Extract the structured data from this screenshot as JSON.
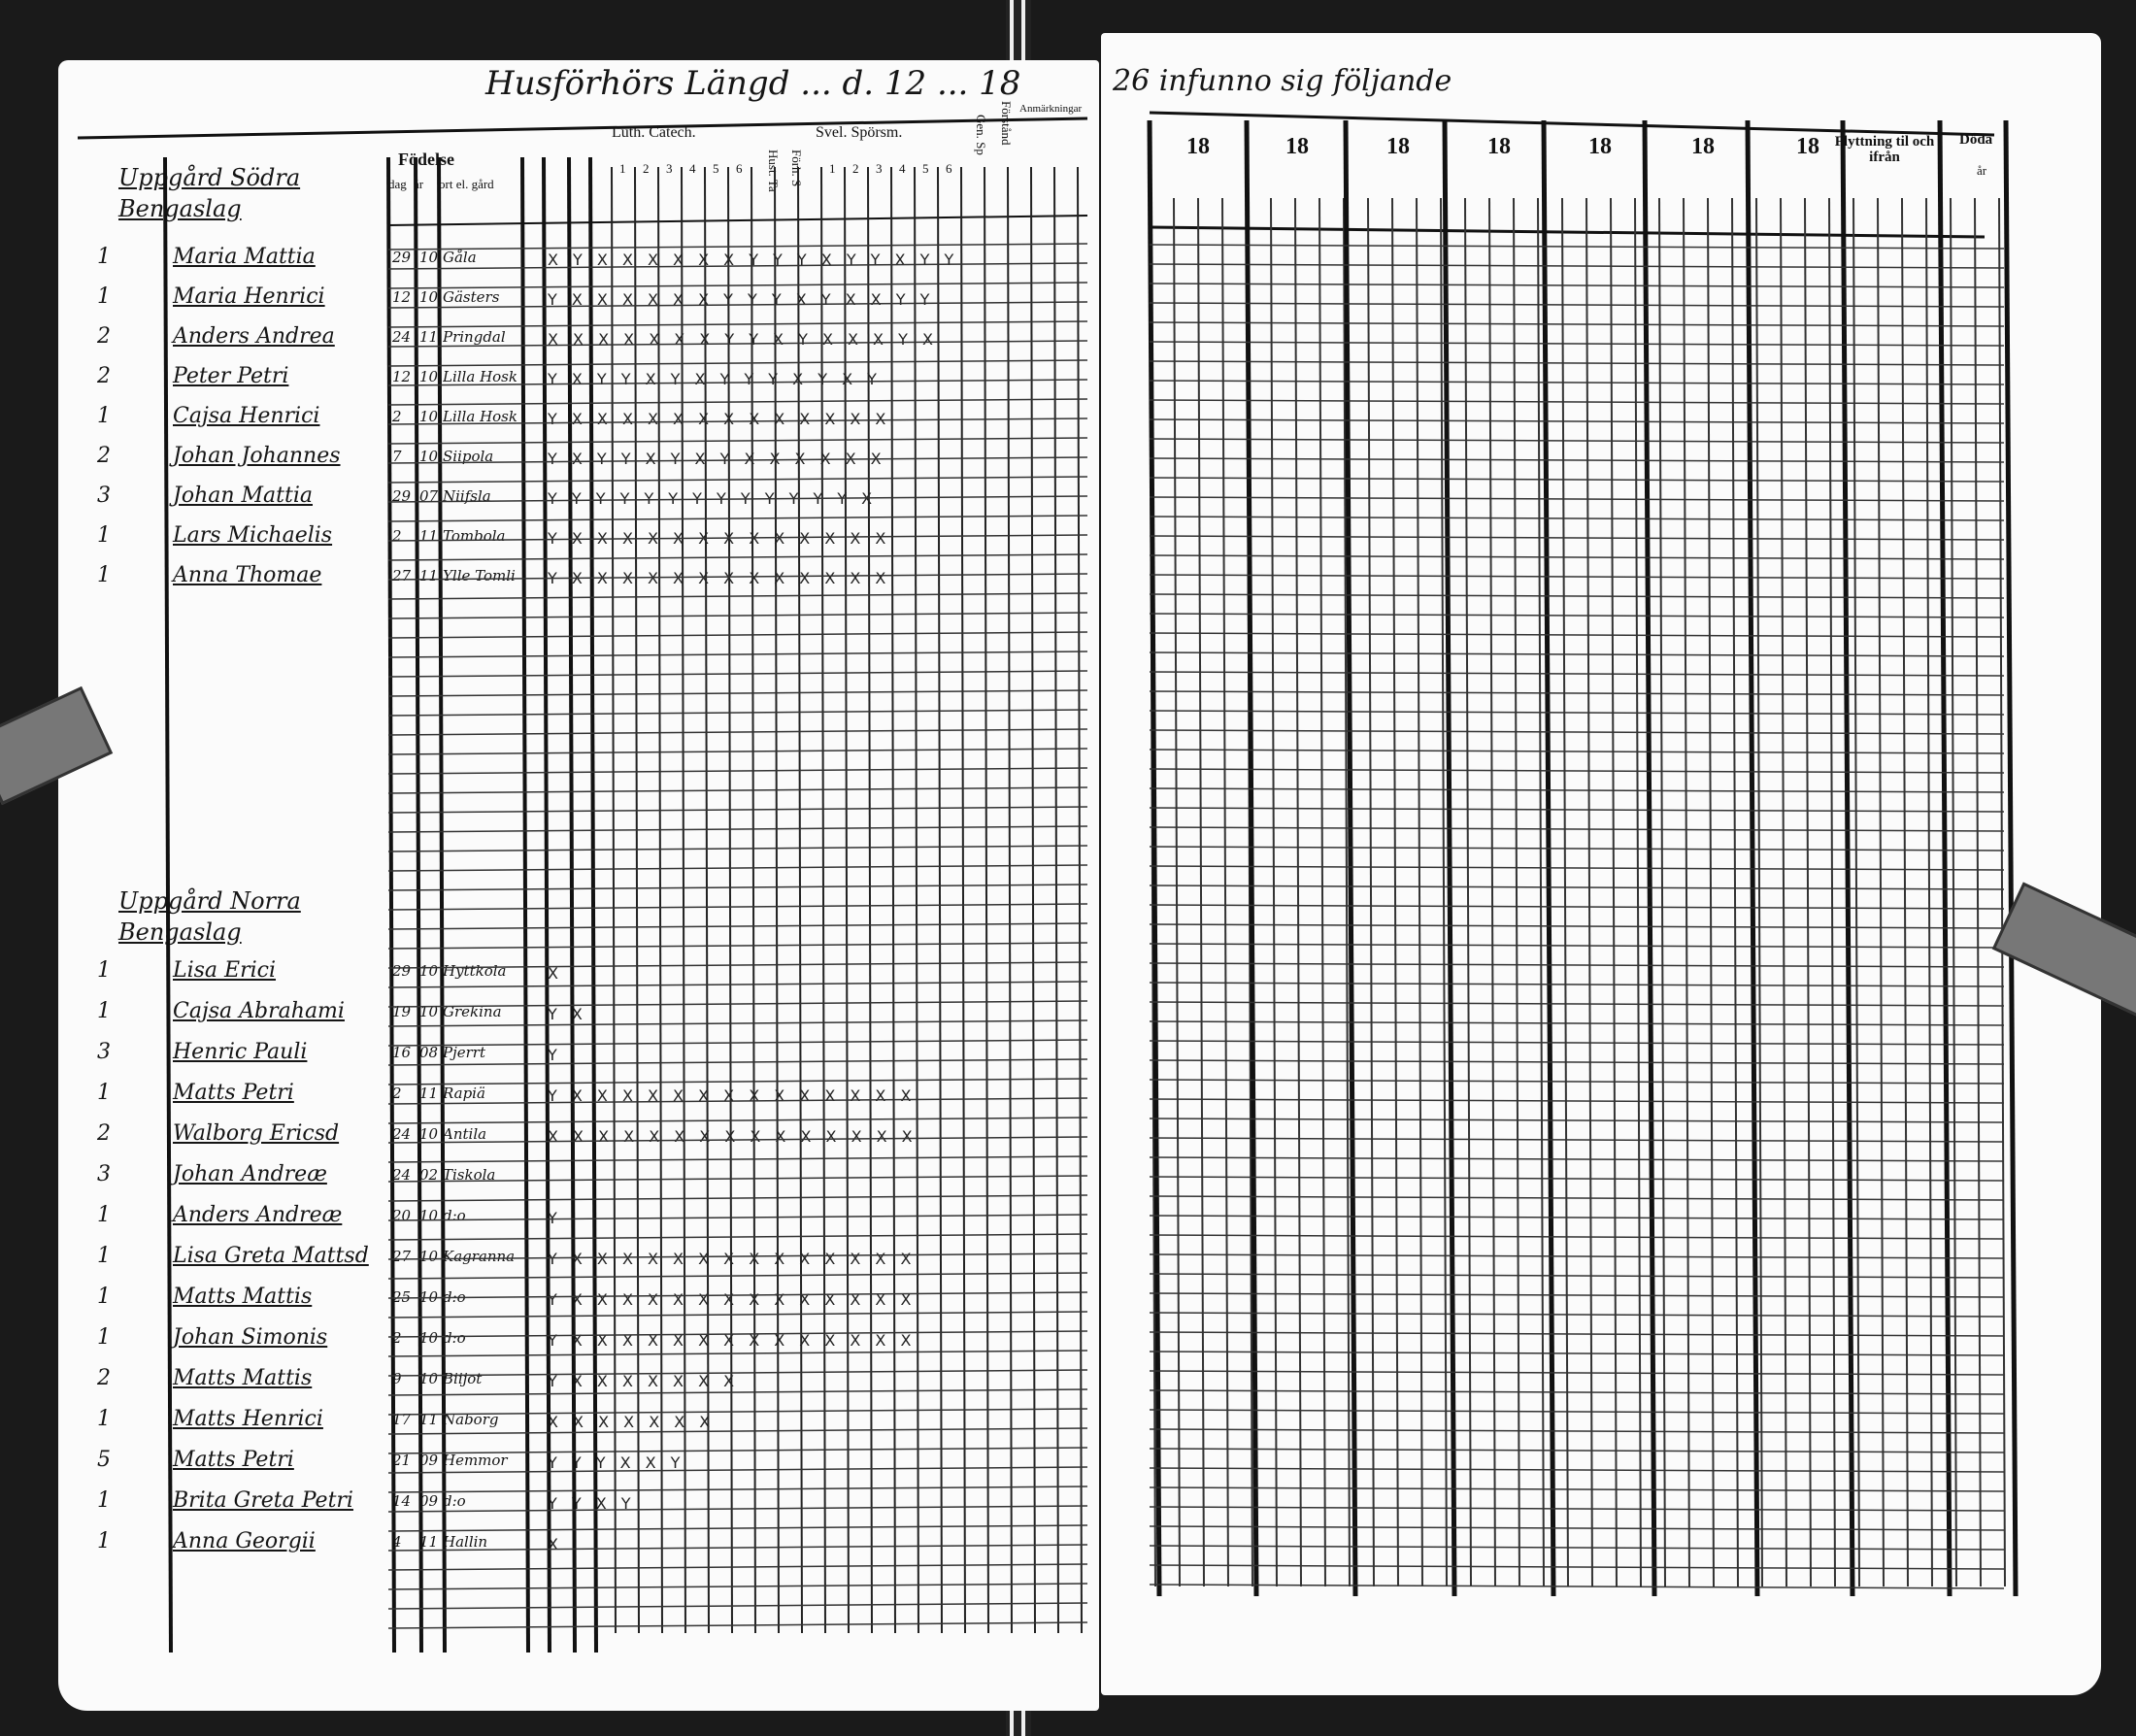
{
  "left_page": {
    "heading": "Husförhörs Längd ... d. 12 ... 18",
    "columns": {
      "birth": "Födelse",
      "day": "dag",
      "year": "år",
      "place": "ort el. gård",
      "catechism": "Luth. Catech.",
      "catechism_parts": [
        "1",
        "2",
        "3",
        "4",
        "5",
        "6"
      ],
      "hust_ta": "Hust. Ta",
      "forh": "Förh. S",
      "questions": "Svel. Spörsm.",
      "question_parts": [
        "1",
        "2",
        "3",
        "4",
        "5",
        "6"
      ],
      "gen_sp": "Gen. Sp",
      "understanding": "Förstånd",
      "remarks": "Anmärkningar"
    },
    "sections": [
      {
        "title": "Uppgård Södra Bengaslag",
        "rows": [
          {
            "num": "1",
            "name": "Maria Mattia",
            "day": "29",
            "year": "10",
            "place": "Gåla",
            "marks": "X Y X X X X X X Y Y Y X Y Y X Y Y"
          },
          {
            "num": "1",
            "name": "Maria Henrici",
            "day": "12",
            "year": "10",
            "place": "Gästers",
            "marks": "Y X X X X X X Y Y Y X Y X X Y Y"
          },
          {
            "num": "2",
            "name": "Anders Andrea",
            "day": "24",
            "year": "11",
            "place": "Pringdal",
            "marks": "X X X X X X X Y Y X Y X X X Y X"
          },
          {
            "num": "2",
            "name": "Peter Petri",
            "day": "12",
            "year": "10",
            "place": "Lilla Hosk",
            "marks": "Y X Y Y X Y X Y Y Y X Y X Y"
          },
          {
            "num": "1",
            "name": "Cajsa Henrici",
            "day": "2",
            "year": "10",
            "place": "Lilla Hosk",
            "marks": "Y X X X X X X X X X X X X X"
          },
          {
            "num": "2",
            "name": "Johan Johannes",
            "day": "7",
            "year": "10",
            "place": "Siipola",
            "marks": "Y X Y Y X Y X Y X X X X X X"
          },
          {
            "num": "3",
            "name": "Johan Mattia",
            "day": "29",
            "year": "07",
            "place": "Niifsla",
            "marks": "Y Y Y Y Y Y Y Y Y Y Y Y Y X"
          },
          {
            "num": "1",
            "name": "Lars Michaelis",
            "day": "2",
            "year": "11",
            "place": "Tombola",
            "marks": "Y X X X X X X X X X X X X X"
          },
          {
            "num": "1",
            "name": "Anna Thomae",
            "day": "27",
            "year": "11",
            "place": "Ylle Tomli",
            "marks": "Y X X X X X X X X X X X X X"
          }
        ]
      },
      {
        "title": "Uppgård Norra Bengaslag",
        "rows": [
          {
            "num": "1",
            "name": "Lisa Erici",
            "day": "29",
            "year": "10",
            "place": "Hyttkola",
            "marks": "X"
          },
          {
            "num": "1",
            "name": "Cajsa Abrahami",
            "day": "19",
            "year": "10",
            "place": "Grekina",
            "marks": "Y X"
          },
          {
            "num": "3",
            "name": "Henric Pauli",
            "day": "16",
            "year": "08",
            "place": "Pjerrt",
            "marks": "Y"
          },
          {
            "num": "1",
            "name": "Matts Petri",
            "day": "2",
            "year": "11",
            "place": "Rapiä",
            "marks": "Y X X X X X X X X X X X X X X"
          },
          {
            "num": "2",
            "name": "Walborg Ericsd",
            "day": "24",
            "year": "10",
            "place": "Antila",
            "marks": "X X X X X X X X X X X X X X X"
          },
          {
            "num": "3",
            "name": "Johan Andreæ",
            "day": "24",
            "year": "02",
            "place": "Tiskola",
            "marks": ""
          },
          {
            "num": "1",
            "name": "Anders Andreæ",
            "day": "20",
            "year": "10",
            "place": "d:o",
            "marks": "Y"
          },
          {
            "num": "1",
            "name": "Lisa Greta Mattsd",
            "day": "27",
            "year": "10",
            "place": "Kagranna",
            "marks": "Y X X X X X X X X X X X X X X"
          },
          {
            "num": "1",
            "name": "Matts Mattis",
            "day": "25",
            "year": "10",
            "place": "d:o",
            "marks": "Y X X X X X X X X X X X X X X"
          },
          {
            "num": "1",
            "name": "Johan Simonis",
            "day": "2",
            "year": "10",
            "place": "d:o",
            "marks": "Y X X X X X X X X X X X X X X"
          },
          {
            "num": "2",
            "name": "Matts Mattis",
            "day": "9",
            "year": "10",
            "place": "Biijot",
            "marks": "Y X X X X X X X"
          },
          {
            "num": "1",
            "name": "Matts Henrici",
            "day": "17",
            "year": "11",
            "place": "Naborg",
            "marks": "X X X X X X X"
          },
          {
            "num": "5",
            "name": "Matts Petri",
            "day": "21",
            "year": "09",
            "place": "Hemmor",
            "marks": "Y Y Y X X Y"
          },
          {
            "num": "1",
            "name": "Brita Greta Petri",
            "day": "14",
            "year": "09",
            "place": "d:o",
            "marks": "Y Y X Y"
          },
          {
            "num": "1",
            "name": "Anna Georgii",
            "day": "4",
            "year": "11",
            "place": "Hallin",
            "marks": "X"
          }
        ]
      }
    ]
  },
  "right_page": {
    "heading": "26 infunno sig följande",
    "year_headers": [
      "18",
      "18",
      "18",
      "18",
      "18",
      "18",
      "18"
    ],
    "moving": "Flyttning til och ifrån",
    "deaths": "Döda",
    "deaths_year": "år"
  }
}
